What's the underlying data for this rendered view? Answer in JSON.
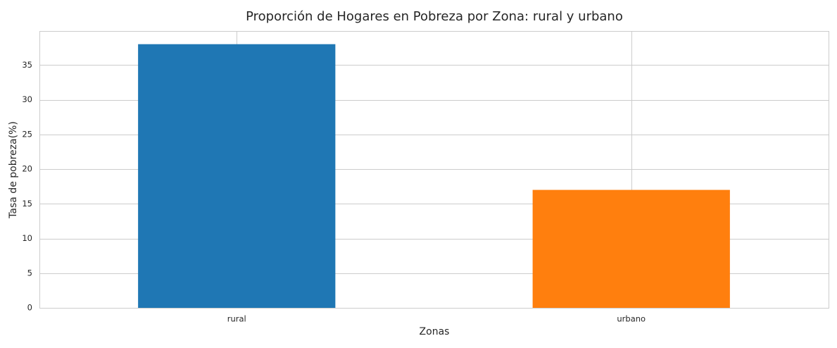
{
  "chart_data": {
    "type": "bar",
    "title": "Proporción de Hogares en Pobreza por Zona: rural y urbano",
    "xlabel": "Zonas",
    "ylabel": "Tasa de pobreza(%)",
    "categories": [
      "rural",
      "urbano"
    ],
    "values": [
      38.0,
      17.0
    ],
    "colors": [
      "#1f77b4",
      "#ff7f0e"
    ],
    "ylim": [
      0,
      39.9
    ],
    "yticks": [
      0,
      5,
      10,
      15,
      20,
      25,
      30,
      35
    ],
    "grid": true,
    "legend": "none"
  }
}
